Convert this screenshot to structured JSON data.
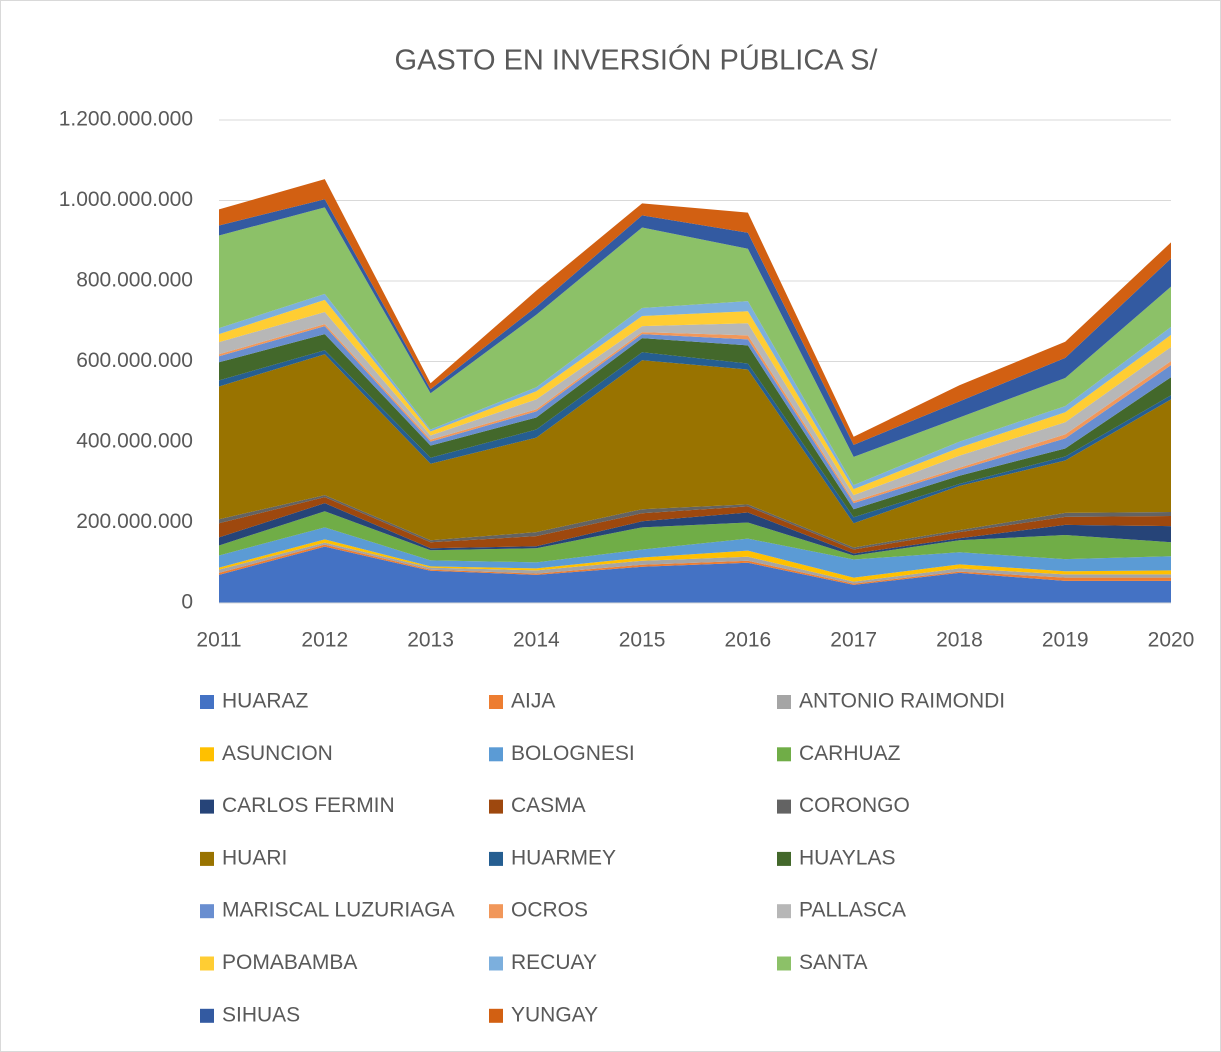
{
  "chart_data": {
    "type": "stacked_area",
    "title": "GASTO EN INVERSIÓN PÚBLICA S/",
    "categories": [
      "2011",
      "2012",
      "2013",
      "2014",
      "2015",
      "2016",
      "2017",
      "2018",
      "2019",
      "2020"
    ],
    "ylim": [
      0,
      1200000000
    ],
    "yticks": [
      0,
      {
        "value": 200000000,
        "label": "200.000.000"
      },
      {
        "value": 400000000,
        "label": "400.000.000"
      },
      {
        "value": 600000000,
        "label": "600.000.000"
      },
      {
        "value": 800000000,
        "label": "800.000.000"
      },
      {
        "value": 1000000000,
        "label": "1.000.000.000"
      },
      {
        "value": 1200000000,
        "label": "1.200.000.000"
      }
    ],
    "grid": true,
    "legend": "bottom",
    "series": [
      {
        "name": "HUARAZ",
        "color": "#4472c4",
        "values": [
          70000000,
          140000000,
          80000000,
          70000000,
          90000000,
          100000000,
          45000000,
          75000000,
          55000000,
          55000000
        ]
      },
      {
        "name": "AIJA",
        "color": "#ed7d31",
        "values": [
          5000000,
          5000000,
          3000000,
          3000000,
          5000000,
          5000000,
          3000000,
          3000000,
          8000000,
          8000000
        ]
      },
      {
        "name": "ANTONIO RAIMONDI",
        "color": "#a5a5a5",
        "values": [
          8000000,
          5000000,
          5000000,
          8000000,
          10000000,
          10000000,
          5000000,
          8000000,
          8000000,
          8000000
        ]
      },
      {
        "name": "ASUNCION",
        "color": "#ffc000",
        "values": [
          5000000,
          8000000,
          3000000,
          5000000,
          8000000,
          15000000,
          10000000,
          10000000,
          8000000,
          10000000
        ]
      },
      {
        "name": "BOLOGNESI",
        "color": "#5b9bd5",
        "values": [
          30000000,
          30000000,
          15000000,
          15000000,
          20000000,
          30000000,
          45000000,
          30000000,
          30000000,
          35000000
        ]
      },
      {
        "name": "CARHUAZ",
        "color": "#70ad47",
        "values": [
          25000000,
          40000000,
          25000000,
          35000000,
          55000000,
          40000000,
          10000000,
          30000000,
          60000000,
          35000000
        ]
      },
      {
        "name": "CARLOS FERMIN",
        "color": "#264478",
        "values": [
          20000000,
          20000000,
          5000000,
          5000000,
          15000000,
          25000000,
          5000000,
          5000000,
          25000000,
          40000000
        ]
      },
      {
        "name": "CASMA",
        "color": "#9e480e",
        "values": [
          35000000,
          15000000,
          15000000,
          25000000,
          20000000,
          15000000,
          10000000,
          15000000,
          20000000,
          25000000
        ]
      },
      {
        "name": "CORONGO",
        "color": "#636363",
        "values": [
          10000000,
          5000000,
          5000000,
          10000000,
          10000000,
          5000000,
          5000000,
          5000000,
          10000000,
          10000000
        ]
      },
      {
        "name": "HUARI",
        "color": "#997300",
        "values": [
          330000000,
          350000000,
          190000000,
          235000000,
          370000000,
          335000000,
          60000000,
          110000000,
          130000000,
          280000000
        ]
      },
      {
        "name": "HUARMEY",
        "color": "#255e91",
        "values": [
          15000000,
          10000000,
          15000000,
          20000000,
          20000000,
          15000000,
          15000000,
          5000000,
          10000000,
          10000000
        ]
      },
      {
        "name": "HUAYLAS",
        "color": "#43682b",
        "values": [
          45000000,
          40000000,
          30000000,
          30000000,
          35000000,
          45000000,
          20000000,
          20000000,
          20000000,
          45000000
        ]
      },
      {
        "name": "MARISCAL LUZURIAGA",
        "color": "#698ed0",
        "values": [
          15000000,
          20000000,
          10000000,
          15000000,
          10000000,
          15000000,
          15000000,
          15000000,
          25000000,
          30000000
        ]
      },
      {
        "name": "OCROS",
        "color": "#f1975a",
        "values": [
          5000000,
          5000000,
          5000000,
          5000000,
          5000000,
          10000000,
          5000000,
          5000000,
          10000000,
          10000000
        ]
      },
      {
        "name": "PALLASCA",
        "color": "#b7b7b7",
        "values": [
          30000000,
          30000000,
          10000000,
          25000000,
          15000000,
          30000000,
          15000000,
          30000000,
          30000000,
          35000000
        ]
      },
      {
        "name": "POMABAMBA",
        "color": "#ffcd33",
        "values": [
          20000000,
          30000000,
          10000000,
          20000000,
          25000000,
          30000000,
          15000000,
          20000000,
          25000000,
          30000000
        ]
      },
      {
        "name": "RECUAY",
        "color": "#7cafdd",
        "values": [
          15000000,
          15000000,
          5000000,
          10000000,
          20000000,
          25000000,
          10000000,
          15000000,
          15000000,
          20000000
        ]
      },
      {
        "name": "SANTA",
        "color": "#8cc168",
        "values": [
          230000000,
          215000000,
          90000000,
          180000000,
          200000000,
          130000000,
          70000000,
          60000000,
          70000000,
          100000000
        ]
      },
      {
        "name": "SIHUAS",
        "color": "#335aa1",
        "values": [
          25000000,
          20000000,
          10000000,
          20000000,
          30000000,
          40000000,
          30000000,
          40000000,
          50000000,
          70000000
        ]
      },
      {
        "name": "YUNGAY",
        "color": "#d26012",
        "values": [
          40000000,
          50000000,
          15000000,
          40000000,
          30000000,
          50000000,
          20000000,
          40000000,
          40000000,
          40000000
        ]
      }
    ]
  }
}
